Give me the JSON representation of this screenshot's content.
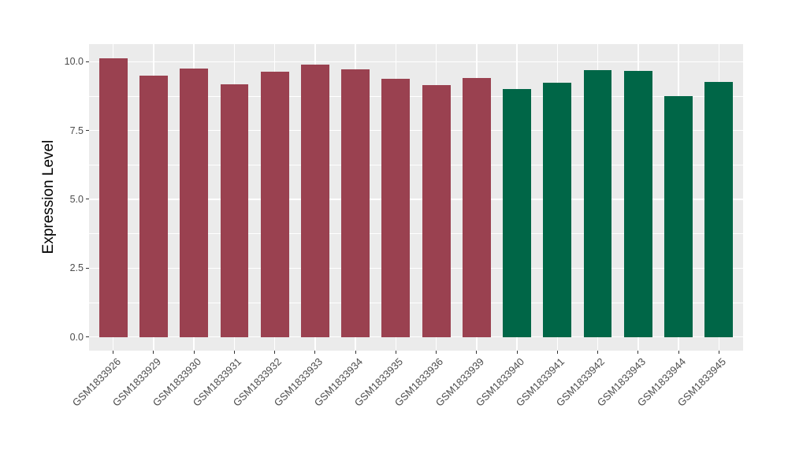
{
  "chart_data": {
    "type": "bar",
    "title": "",
    "xlabel": "",
    "ylabel": "Expression Level",
    "categories": [
      "GSM1833926",
      "GSM1833929",
      "GSM1833930",
      "GSM1833931",
      "GSM1833932",
      "GSM1833933",
      "GSM1833934",
      "GSM1833935",
      "GSM1833936",
      "GSM1833939",
      "GSM1833940",
      "GSM1833941",
      "GSM1833942",
      "GSM1833943",
      "GSM1833944",
      "GSM1833945"
    ],
    "values": [
      10.13,
      9.49,
      9.75,
      9.19,
      9.64,
      9.89,
      9.72,
      9.39,
      9.16,
      9.42,
      9.02,
      9.23,
      9.7,
      9.67,
      8.76,
      9.26
    ],
    "bar_groups": [
      0,
      0,
      0,
      0,
      0,
      0,
      0,
      0,
      0,
      0,
      1,
      1,
      1,
      1,
      1,
      1
    ],
    "group_colors": [
      "#9A4150",
      "#006647"
    ],
    "ylim": [
      0,
      10.64
    ],
    "yticks": [
      0,
      2.5,
      5,
      7.5,
      10
    ],
    "ytick_labels": [
      "0.0",
      "2.5",
      "5.0",
      "7.5",
      "10.0"
    ],
    "yticks_minor": [
      1.25,
      3.75,
      6.25,
      8.75
    ],
    "grid": true,
    "legend": "none",
    "x_label_angle": 45,
    "bar_width_fraction": 0.7,
    "panel_background": "#EBEBEB",
    "gridline_color": "#FFFFFF",
    "axis_text_color": "#4D4D4D",
    "axis_title_color": "#000000"
  }
}
